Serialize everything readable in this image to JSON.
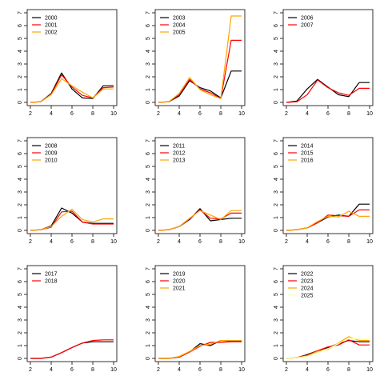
{
  "chart_data": [
    {
      "type": "line",
      "x": [
        2,
        3,
        4,
        5,
        6,
        7,
        8,
        9,
        10
      ],
      "ylim": [
        0,
        7
      ],
      "x_ticks": [
        "2",
        "4",
        "6",
        "8",
        "10"
      ],
      "y_ticks": [
        "0",
        "1",
        "2",
        "3",
        "4",
        "5",
        "6",
        "7"
      ],
      "legend_position": "top-left",
      "series": [
        {
          "name": "2000",
          "color": "#000000",
          "values": [
            0.0,
            0.05,
            0.7,
            2.3,
            1.05,
            0.35,
            0.3,
            1.3,
            1.3
          ]
        },
        {
          "name": "2001",
          "color": "#ff0000",
          "values": [
            0.0,
            0.05,
            0.65,
            2.15,
            1.2,
            0.55,
            0.35,
            1.15,
            1.2
          ]
        },
        {
          "name": "2002",
          "color": "#ffa500",
          "values": [
            0.0,
            0.05,
            0.6,
            1.85,
            1.3,
            0.8,
            0.35,
            1.05,
            1.05
          ]
        }
      ]
    },
    {
      "type": "line",
      "x": [
        2,
        3,
        4,
        5,
        6,
        7,
        8,
        9,
        10
      ],
      "ylim": [
        0,
        7
      ],
      "x_ticks": [
        "2",
        "4",
        "6",
        "8",
        "10"
      ],
      "y_ticks": [
        "0",
        "1",
        "2",
        "3",
        "4",
        "5",
        "6",
        "7"
      ],
      "legend_position": "top-left",
      "series": [
        {
          "name": "2003",
          "color": "#000000",
          "values": [
            0.0,
            0.05,
            0.5,
            1.7,
            1.15,
            0.9,
            0.35,
            2.45,
            2.45
          ]
        },
        {
          "name": "2004",
          "color": "#ff0000",
          "values": [
            0.0,
            0.05,
            0.6,
            1.8,
            1.05,
            0.75,
            0.3,
            4.85,
            4.85
          ]
        },
        {
          "name": "2005",
          "color": "#ffa500",
          "values": [
            0.0,
            0.05,
            0.7,
            1.95,
            1.0,
            0.6,
            0.3,
            6.75,
            6.75
          ]
        }
      ]
    },
    {
      "type": "line",
      "x": [
        2,
        3,
        4,
        5,
        6,
        7,
        8,
        9,
        10
      ],
      "ylim": [
        0,
        7
      ],
      "x_ticks": [
        "2",
        "4",
        "6",
        "8",
        "10"
      ],
      "y_ticks": [
        "0",
        "1",
        "2",
        "3",
        "4",
        "5",
        "6",
        "7"
      ],
      "legend_position": "top-left",
      "series": [
        {
          "name": "2006",
          "color": "#000000",
          "values": [
            0.0,
            0.1,
            1.05,
            1.8,
            1.2,
            0.6,
            0.45,
            1.55,
            1.55
          ]
        },
        {
          "name": "2007",
          "color": "#ff0000",
          "values": [
            0.0,
            0.05,
            0.6,
            1.75,
            1.15,
            0.75,
            0.55,
            1.1,
            1.1
          ]
        }
      ]
    },
    {
      "type": "line",
      "x": [
        2,
        3,
        4,
        5,
        6,
        7,
        8,
        9,
        10
      ],
      "ylim": [
        0,
        7
      ],
      "x_ticks": [
        "2",
        "4",
        "6",
        "8",
        "10"
      ],
      "y_ticks": [
        "0",
        "1",
        "2",
        "3",
        "4",
        "5",
        "6",
        "7"
      ],
      "legend_position": "top-left",
      "series": [
        {
          "name": "2008",
          "color": "#000000",
          "values": [
            0.0,
            0.05,
            0.35,
            1.75,
            1.35,
            0.65,
            0.55,
            0.55,
            0.55
          ]
        },
        {
          "name": "2009",
          "color": "#ff0000",
          "values": [
            0.0,
            0.05,
            0.25,
            1.45,
            1.5,
            0.65,
            0.5,
            0.5,
            0.5
          ]
        },
        {
          "name": "2010",
          "color": "#ffa500",
          "values": [
            0.0,
            0.05,
            0.3,
            1.1,
            1.65,
            0.85,
            0.65,
            0.9,
            0.9
          ]
        }
      ]
    },
    {
      "type": "line",
      "x": [
        2,
        3,
        4,
        5,
        6,
        7,
        8,
        9,
        10
      ],
      "ylim": [
        0,
        7
      ],
      "x_ticks": [
        "2",
        "4",
        "6",
        "8",
        "10"
      ],
      "y_ticks": [
        "0",
        "1",
        "2",
        "3",
        "4",
        "5",
        "6",
        "7"
      ],
      "legend_position": "top-left",
      "series": [
        {
          "name": "2011",
          "color": "#000000",
          "values": [
            0.0,
            0.05,
            0.3,
            0.85,
            1.7,
            0.75,
            0.85,
            0.95,
            0.95
          ]
        },
        {
          "name": "2012",
          "color": "#ff0000",
          "values": [
            0.0,
            0.05,
            0.3,
            0.9,
            1.6,
            0.95,
            0.9,
            1.35,
            1.35
          ]
        },
        {
          "name": "2013",
          "color": "#ffa500",
          "values": [
            0.0,
            0.05,
            0.3,
            0.95,
            1.55,
            1.2,
            0.85,
            1.55,
            1.55
          ]
        }
      ]
    },
    {
      "type": "line",
      "x": [
        2,
        3,
        4,
        5,
        6,
        7,
        8,
        9,
        10
      ],
      "ylim": [
        0,
        7
      ],
      "x_ticks": [
        "2",
        "4",
        "6",
        "8",
        "10"
      ],
      "y_ticks": [
        "0",
        "1",
        "2",
        "3",
        "4",
        "5",
        "6",
        "7"
      ],
      "legend_position": "top-left",
      "series": [
        {
          "name": "2014",
          "color": "#000000",
          "values": [
            0.0,
            0.05,
            0.2,
            0.6,
            1.05,
            1.2,
            1.1,
            2.05,
            2.05
          ]
        },
        {
          "name": "2015",
          "color": "#ff0000",
          "values": [
            0.0,
            0.05,
            0.2,
            0.6,
            1.2,
            1.15,
            1.1,
            1.6,
            1.6
          ]
        },
        {
          "name": "2016",
          "color": "#ffa500",
          "values": [
            0.0,
            0.05,
            0.2,
            0.7,
            1.1,
            1.05,
            1.5,
            1.1,
            1.1
          ]
        }
      ]
    },
    {
      "type": "line",
      "x": [
        2,
        3,
        4,
        5,
        6,
        7,
        8,
        9,
        10
      ],
      "ylim": [
        0,
        7
      ],
      "x_ticks": [
        "2",
        "4",
        "6",
        "8",
        "10"
      ],
      "y_ticks": [
        "0",
        "1",
        "2",
        "3",
        "4",
        "5",
        "6",
        "7"
      ],
      "legend_position": "top-left",
      "series": [
        {
          "name": "2017",
          "color": "#000000",
          "values": [
            0.0,
            0.0,
            0.1,
            0.45,
            0.85,
            1.2,
            1.3,
            1.3,
            1.3
          ]
        },
        {
          "name": "2018",
          "color": "#ff0000",
          "values": [
            0.0,
            0.0,
            0.1,
            0.45,
            0.85,
            1.2,
            1.4,
            1.45,
            1.45
          ]
        }
      ]
    },
    {
      "type": "line",
      "x": [
        2,
        3,
        4,
        5,
        6,
        7,
        8,
        9,
        10
      ],
      "ylim": [
        0,
        7
      ],
      "x_ticks": [
        "2",
        "4",
        "6",
        "8",
        "10"
      ],
      "y_ticks": [
        "0",
        "1",
        "2",
        "3",
        "4",
        "5",
        "6",
        "7"
      ],
      "legend_position": "top-left",
      "series": [
        {
          "name": "2019",
          "color": "#000000",
          "values": [
            0.0,
            0.0,
            0.1,
            0.5,
            1.15,
            1.0,
            1.4,
            1.35,
            1.35
          ]
        },
        {
          "name": "2020",
          "color": "#ff0000",
          "values": [
            0.0,
            0.0,
            0.1,
            0.5,
            0.95,
            1.25,
            1.25,
            1.3,
            1.3
          ]
        },
        {
          "name": "2021",
          "color": "#ffa500",
          "values": [
            0.0,
            0.0,
            0.15,
            0.55,
            1.0,
            1.1,
            1.4,
            1.4,
            1.4
          ]
        }
      ]
    },
    {
      "type": "line",
      "x": [
        2,
        3,
        4,
        5,
        6,
        7,
        8,
        9,
        10
      ],
      "ylim": [
        0,
        7
      ],
      "x_ticks": [
        "2",
        "4",
        "6",
        "8",
        "10"
      ],
      "y_ticks": [
        "0",
        "1",
        "2",
        "3",
        "4",
        "5",
        "6",
        "7"
      ],
      "legend_position": "top-left",
      "series": [
        {
          "name": "2022",
          "color": "#000000",
          "values": [
            0.0,
            0.05,
            0.3,
            0.6,
            0.85,
            1.15,
            1.4,
            1.3,
            1.3
          ]
        },
        {
          "name": "2023",
          "color": "#ff0000",
          "values": [
            0.0,
            0.05,
            0.25,
            0.6,
            0.9,
            1.05,
            1.45,
            1.05,
            1.05
          ]
        },
        {
          "name": "2024",
          "color": "#ffa500",
          "values": [
            0.0,
            0.05,
            0.2,
            0.55,
            0.7,
            1.2,
            1.7,
            1.4,
            1.4
          ]
        },
        {
          "name": "2025",
          "color": "#ffff99",
          "values": [
            0.0,
            0.05,
            0.15,
            0.45,
            0.75,
            1.15,
            1.6,
            1.5,
            1.5
          ]
        }
      ]
    }
  ]
}
